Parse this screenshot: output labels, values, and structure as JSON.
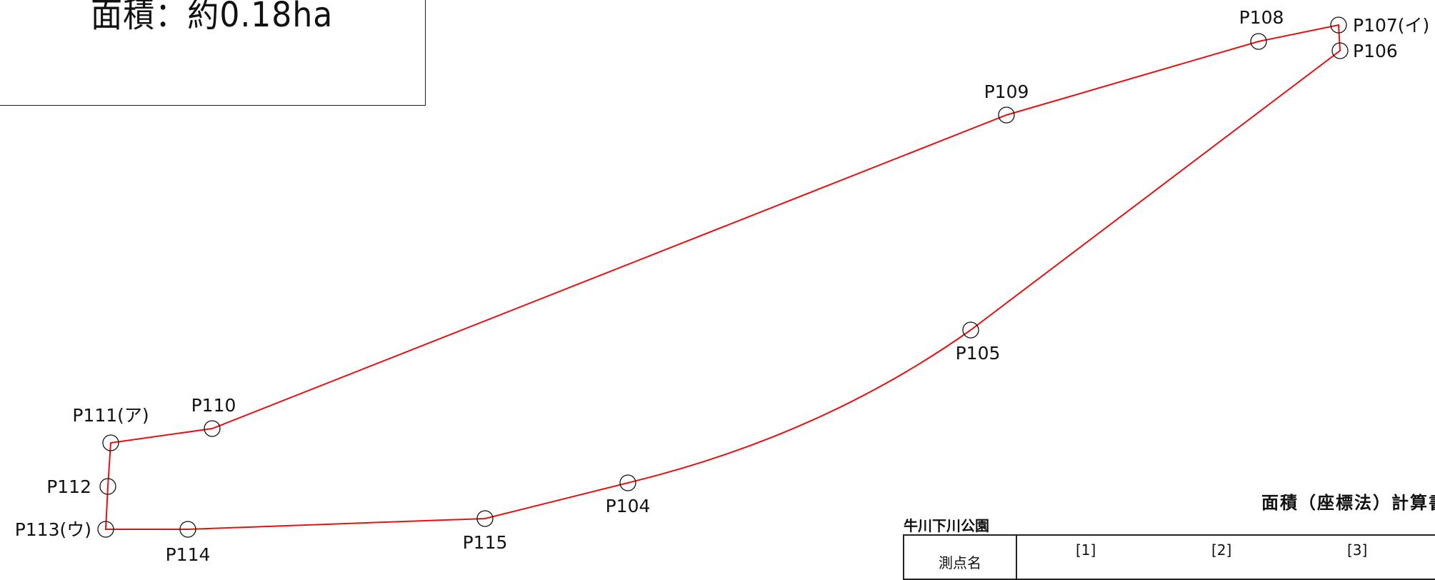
{
  "area_box": {
    "text": "面積：約0.18ha"
  },
  "boundary": {
    "color": "#e81010",
    "points": [
      {
        "name": "P107(イ)"
      },
      {
        "name": "P106"
      },
      {
        "name": "P105"
      },
      {
        "name": "P104"
      },
      {
        "name": "P115"
      },
      {
        "name": "P114"
      },
      {
        "name": "P113(ウ)"
      },
      {
        "name": "P112"
      },
      {
        "name": "P111(ア)"
      },
      {
        "name": "P110"
      },
      {
        "name": "P109"
      },
      {
        "name": "P108"
      }
    ]
  },
  "calc": {
    "title": "面積（座標法）計算書",
    "park_name": "牛川下川公園",
    "headers": [
      "測点名",
      "[1]",
      "[2]",
      "[3]"
    ]
  }
}
